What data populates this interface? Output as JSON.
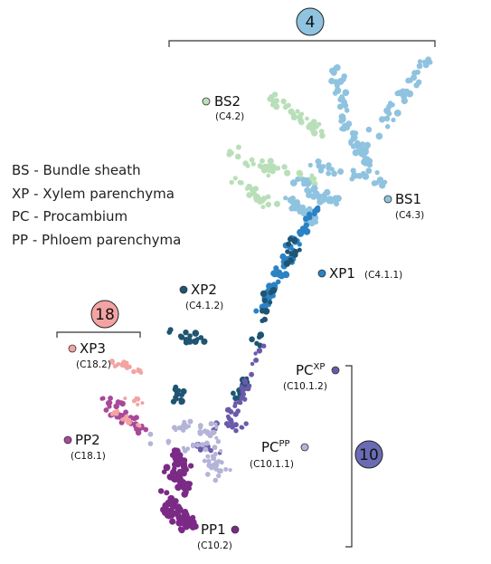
{
  "legend": [
    {
      "abbr": "BS",
      "sep": " - ",
      "name": "Bundle sheath"
    },
    {
      "abbr": "XP",
      "sep": " - ",
      "name": "Xylem parenchyma"
    },
    {
      "abbr": "PC",
      "sep": " - ",
      "name": "Procambium"
    },
    {
      "abbr": "PP",
      "sep": " - ",
      "name": "Phloem parenchyma"
    }
  ],
  "badges": [
    {
      "id": "4",
      "text": "4",
      "color": "#8fc3e0"
    },
    {
      "id": "18",
      "text": "18",
      "color": "#f4a3a3"
    },
    {
      "id": "10",
      "text": "10",
      "color": "#6b6bb4"
    }
  ],
  "clusters": [
    {
      "id": "BS2",
      "name": "BS2",
      "sup": "",
      "code": "(C4.2)",
      "color": "#b9dfb9"
    },
    {
      "id": "BS1",
      "name": "BS1",
      "sup": "",
      "code": "(C4.3)",
      "color": "#8fc3e0"
    },
    {
      "id": "XP1",
      "name": "XP1",
      "sup": "",
      "code": "(C4.1.1)",
      "color": "#2b82c4"
    },
    {
      "id": "XP2",
      "name": "XP2",
      "sup": "",
      "code": "(C4.1.2)",
      "color": "#1f5572"
    },
    {
      "id": "XP3",
      "name": "XP3",
      "sup": "",
      "code": "(C18.2)",
      "color": "#f4a3a3"
    },
    {
      "id": "PP2",
      "name": "PP2",
      "sup": "",
      "code": "(C18.1)",
      "color": "#a8489a"
    },
    {
      "id": "PCXP",
      "name": "PC",
      "sup": "XP",
      "code": "(C10.1.2)",
      "color": "#6b5aaa"
    },
    {
      "id": "PCPP",
      "name": "PC",
      "sup": "PP",
      "code": "(C10.1.1)",
      "color": "#b4b4d8"
    },
    {
      "id": "PP1",
      "name": "PP1",
      "sup": "",
      "code": "(C10.2)",
      "color": "#7b2a86"
    }
  ]
}
